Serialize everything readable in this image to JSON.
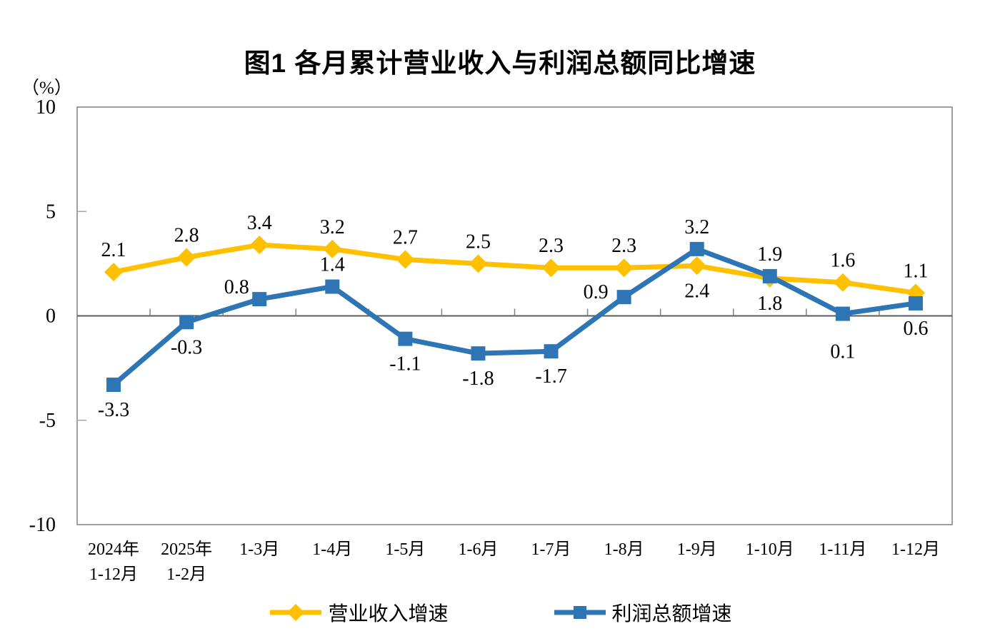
{
  "chart_data": {
    "type": "line",
    "title": "图1 各月累计营业收入与利润总额同比增速",
    "y_unit": "（%）",
    "ylim": [
      -10,
      10
    ],
    "yticks": [
      10,
      5,
      0,
      -5,
      -10
    ],
    "grid": false,
    "legend_position": "bottom",
    "categories": [
      "2024年\n1-12月",
      "2025年\n1-2月",
      "1-3月",
      "1-4月",
      "1-5月",
      "1-6月",
      "1-7月",
      "1-8月",
      "1-9月",
      "1-10月",
      "1-11月",
      "1-12月"
    ],
    "series": [
      {
        "name": "营业收入增速",
        "color": "#FFC000",
        "marker": "diamond",
        "values": [
          2.1,
          2.8,
          3.4,
          3.2,
          2.7,
          2.5,
          2.3,
          2.3,
          2.4,
          1.8,
          1.6,
          1.1
        ],
        "label_positions": [
          "above",
          "above",
          "above",
          "above",
          "above",
          "above",
          "above",
          "above",
          "below",
          "below",
          "above",
          "above"
        ]
      },
      {
        "name": "利润总额增速",
        "color": "#2E75B6",
        "marker": "square",
        "values": [
          -3.3,
          -0.3,
          0.8,
          1.4,
          -1.1,
          -1.8,
          -1.7,
          0.9,
          3.2,
          1.9,
          0.1,
          0.6
        ],
        "label_positions": [
          "below",
          "below",
          "above-left",
          "above",
          "below",
          "below",
          "below",
          "left",
          "above",
          "above",
          "below-far",
          "below"
        ]
      }
    ],
    "colors": {
      "plot_border": "#808080",
      "zero_line": "#595959",
      "tick": "#A6A6A6",
      "x_tick": "#808080",
      "text": "#000000"
    }
  }
}
